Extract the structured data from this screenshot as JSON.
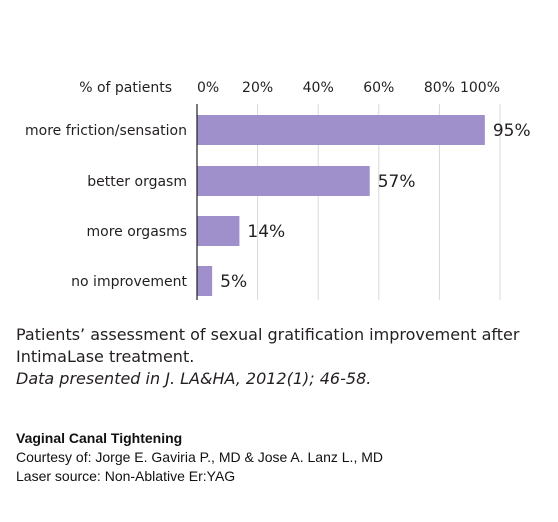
{
  "chart_data": {
    "type": "bar",
    "orientation": "horizontal",
    "axis_title": "% of patients",
    "ticks": [
      "0%",
      "20%",
      "40%",
      "60%",
      "80%",
      "100%"
    ],
    "xlim": [
      0,
      100
    ],
    "grid": true,
    "categories": [
      "more friction/sensation",
      "better orgasm",
      "more orgasms",
      "no improvement"
    ],
    "values": [
      95,
      57,
      14,
      5
    ],
    "value_labels": [
      "95%",
      "57%",
      "14%",
      "5%"
    ],
    "bar_color": "#9f8fcb"
  },
  "caption": {
    "line1": "Patients’ assessment of sexual gratification improvement after",
    "line2": "IntimaLase treatment.",
    "source": "Data presented in J. LA&HA, 2012(1); 46-58."
  },
  "credits": {
    "heading": "Vaginal Canal Tightening",
    "courtesy": "Courtesy of: Jorge E. Gaviria P., MD & Jose A. Lanz L., MD",
    "laser": "Laser source: Non-Ablative Er:YAG"
  }
}
